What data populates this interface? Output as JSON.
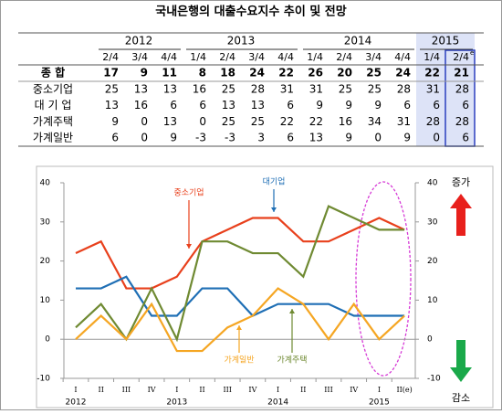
{
  "table": {
    "title": "국내은행의 대출수요지수 추이 및 전망",
    "years": [
      {
        "label": "2012",
        "quarters": [
          "2/4",
          "3/4",
          "4/4"
        ]
      },
      {
        "label": "2013",
        "quarters": [
          "1/4",
          "2/4",
          "3/4",
          "4/4"
        ]
      },
      {
        "label": "2014",
        "quarters": [
          "1/4",
          "2/4",
          "3/4",
          "4/4"
        ]
      },
      {
        "label": "2015",
        "quarters": [
          "1/4",
          "2/4"
        ]
      }
    ],
    "estimate_mark": "e",
    "rows": [
      {
        "label": "종 합",
        "values": [
          17,
          9,
          11,
          8,
          18,
          24,
          22,
          26,
          20,
          25,
          24,
          22,
          21
        ]
      },
      {
        "label": "중소기업",
        "values": [
          25,
          13,
          13,
          16,
          25,
          28,
          31,
          31,
          25,
          25,
          28,
          31,
          28
        ]
      },
      {
        "label": "대 기 업",
        "values": [
          13,
          16,
          6,
          6,
          13,
          13,
          6,
          9,
          9,
          9,
          6,
          6,
          6
        ]
      },
      {
        "label": "가계주택",
        "values": [
          9,
          0,
          13,
          0,
          25,
          25,
          22,
          22,
          16,
          34,
          31,
          28,
          28
        ]
      },
      {
        "label": "가계일반",
        "values": [
          6,
          0,
          9,
          -3,
          -3,
          3,
          6,
          13,
          9,
          0,
          9,
          0,
          6
        ]
      }
    ]
  },
  "chart_data": {
    "type": "line",
    "categories": [
      "I",
      "II",
      "III",
      "IV",
      "I",
      "II",
      "III",
      "IV",
      "I",
      "II",
      "III",
      "IV",
      "I",
      "II(e)"
    ],
    "year_labels": [
      "2012",
      "2013",
      "2014",
      "2015"
    ],
    "series": [
      {
        "name": "중소기업",
        "color": "#e8401c",
        "values": [
          22,
          25,
          13,
          13,
          16,
          25,
          28,
          31,
          31,
          25,
          25,
          28,
          31,
          28
        ]
      },
      {
        "name": "대기업",
        "color": "#1f6fb5",
        "values": [
          13,
          13,
          16,
          6,
          6,
          13,
          13,
          6,
          9,
          9,
          9,
          6,
          6,
          6
        ]
      },
      {
        "name": "가계주택",
        "color": "#6f8a32",
        "values": [
          3,
          9,
          0,
          13,
          0,
          25,
          25,
          22,
          22,
          16,
          34,
          31,
          28,
          28
        ]
      },
      {
        "name": "가계일반",
        "color": "#f5a623",
        "values": [
          0,
          6,
          0,
          9,
          -3,
          -3,
          3,
          6,
          13,
          9,
          0,
          9,
          0,
          6
        ]
      }
    ],
    "ylim": [
      -10,
      40
    ],
    "yticks": [
      -10,
      0,
      10,
      20,
      30,
      40
    ],
    "y2lim": [
      -10,
      40
    ],
    "y2ticks": [
      -10,
      0,
      10,
      20,
      30,
      40
    ],
    "increase_label": "증가",
    "decrease_label": "감소"
  }
}
